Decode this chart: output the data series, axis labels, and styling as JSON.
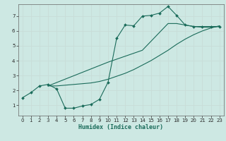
{
  "xlabel": "Humidex (Indice chaleur)",
  "ylabel": "",
  "bg_color": "#cde8e3",
  "line_color": "#1a6b5a",
  "grid_color": "#c8ddd8",
  "xlim": [
    -0.5,
    23.5
  ],
  "ylim": [
    0.3,
    7.8
  ],
  "xticks": [
    0,
    1,
    2,
    3,
    4,
    5,
    6,
    7,
    8,
    9,
    10,
    11,
    12,
    13,
    14,
    15,
    16,
    17,
    18,
    19,
    20,
    21,
    22,
    23
  ],
  "yticks": [
    1,
    2,
    3,
    4,
    5,
    6,
    7
  ],
  "curve1_x": [
    0,
    1,
    2,
    3,
    4,
    5,
    6,
    7,
    8,
    9,
    10,
    11,
    12,
    13,
    14,
    15,
    16,
    17,
    18,
    19,
    20,
    21,
    22,
    23
  ],
  "curve1_y": [
    1.5,
    1.85,
    2.3,
    2.4,
    2.1,
    0.8,
    0.8,
    0.95,
    1.05,
    1.4,
    2.55,
    5.5,
    6.4,
    6.35,
    7.0,
    7.05,
    7.2,
    7.65,
    7.05,
    6.4,
    6.3,
    6.3,
    6.3,
    6.3
  ],
  "curve2_x": [
    3,
    4,
    5,
    6,
    7,
    8,
    9,
    10,
    11,
    12,
    13,
    14,
    15,
    16,
    17,
    18,
    19,
    20,
    21,
    22,
    23
  ],
  "curve2_y": [
    2.3,
    2.3,
    2.35,
    2.4,
    2.45,
    2.5,
    2.6,
    2.75,
    2.95,
    3.15,
    3.4,
    3.7,
    4.0,
    4.35,
    4.7,
    5.1,
    5.45,
    5.75,
    6.0,
    6.2,
    6.35
  ],
  "curve3_x": [
    3,
    10,
    14,
    17,
    18,
    19,
    20,
    21,
    22,
    23
  ],
  "curve3_y": [
    2.3,
    3.9,
    4.7,
    6.5,
    6.5,
    6.4,
    6.3,
    6.25,
    6.25,
    6.3
  ]
}
